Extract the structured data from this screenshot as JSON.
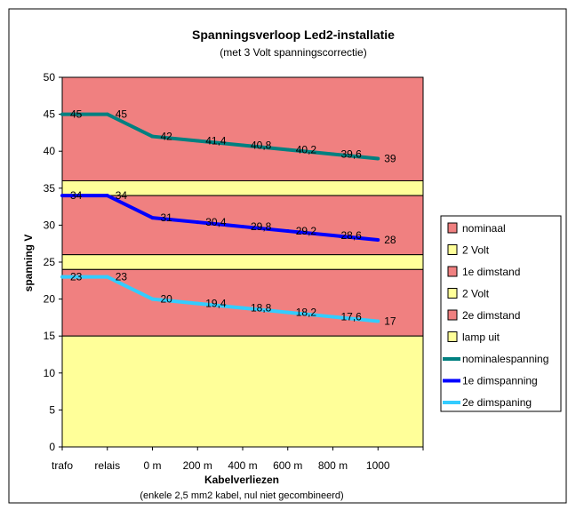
{
  "chart_data": {
    "type": "line",
    "title": "Spanningsverloop Led2-installatie",
    "subtitle": "(met 3 Volt spanningscorrectie)",
    "xlabel": "Kabelverliezen",
    "xlabel_note": "(enkele 2,5 mm2 kabel, nul niet gecombineerd)",
    "ylabel": "spanning V",
    "ylim": [
      0,
      50
    ],
    "y_ticks": [
      0,
      5,
      10,
      15,
      20,
      25,
      30,
      35,
      40,
      45,
      50
    ],
    "categories": [
      "trafo",
      "relais",
      "0 m",
      "200 m",
      "400 m",
      "600 m",
      "800 m",
      "1000"
    ],
    "grid": false,
    "legend_position": "right",
    "bands": [
      {
        "name": "nominaal",
        "from": 36,
        "to": 50,
        "color": "#f08080"
      },
      {
        "name": "2 Volt",
        "from": 34,
        "to": 36,
        "color": "#ffff99"
      },
      {
        "name": "1e dimstand",
        "from": 26,
        "to": 34,
        "color": "#f08080"
      },
      {
        "name": "2 Volt",
        "from": 24,
        "to": 26,
        "color": "#ffff99"
      },
      {
        "name": "2e dimstand",
        "from": 15,
        "to": 24,
        "color": "#f08080"
      },
      {
        "name": "lamp uit",
        "from": 0,
        "to": 15,
        "color": "#ffff99"
      }
    ],
    "series": [
      {
        "name": "nominalespanning",
        "color": "#008080",
        "values": [
          45,
          45,
          42,
          41.4,
          40.8,
          40.2,
          39.6,
          39
        ],
        "labels": [
          "45",
          "45",
          "42",
          "41,4",
          "40,8",
          "40,2",
          "39,6",
          "39"
        ]
      },
      {
        "name": "1e dimspanning",
        "color": "#0000ff",
        "values": [
          34,
          34,
          31,
          30.4,
          29.8,
          29.2,
          28.6,
          28
        ],
        "labels": [
          "34",
          "34",
          "31",
          "30,4",
          "29,8",
          "29,2",
          "28,6",
          "28"
        ]
      },
      {
        "name": "2e dimspaning",
        "color": "#33ccff",
        "values": [
          23,
          23,
          20,
          19.4,
          18.8,
          18.2,
          17.6,
          17
        ],
        "labels": [
          "23",
          "23",
          "20",
          "19,4",
          "18,8",
          "18,2",
          "17,6",
          "17"
        ]
      }
    ]
  }
}
